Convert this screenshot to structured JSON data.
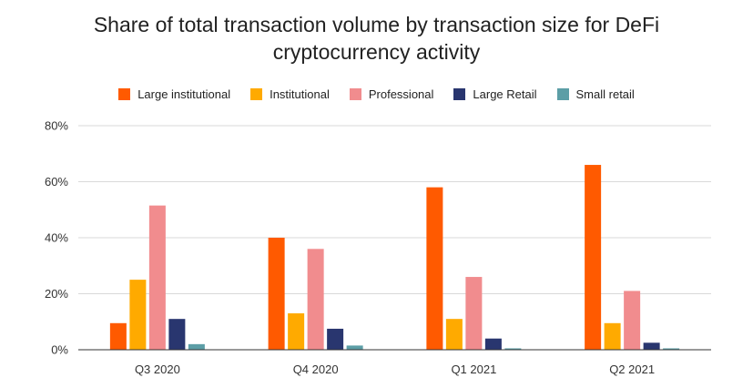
{
  "chart_data": {
    "type": "bar",
    "title": "Share of total transaction volume by transaction size for DeFi cryptocurrency activity",
    "xlabel": "",
    "ylabel": "",
    "categories": [
      "Q3 2020",
      "Q4 2020",
      "Q1 2021",
      "Q2 2021"
    ],
    "series": [
      {
        "name": "Large institutional",
        "color": "#ff5a00",
        "values": [
          9.5,
          40,
          58,
          66
        ]
      },
      {
        "name": "Institutional",
        "color": "#ffaa00",
        "values": [
          25,
          13,
          11,
          9.5
        ]
      },
      {
        "name": "Professional",
        "color": "#f18c8e",
        "values": [
          51.5,
          36,
          26,
          21
        ]
      },
      {
        "name": "Large Retail",
        "color": "#29366f",
        "values": [
          11,
          7.5,
          4,
          2.5
        ]
      },
      {
        "name": "Small retail",
        "color": "#5c9ea6",
        "values": [
          2,
          1.5,
          0.5,
          0.5
        ]
      }
    ],
    "ylim": [
      0,
      80
    ],
    "yticks": [
      0,
      20,
      40,
      60,
      80
    ],
    "ytick_labels": [
      "0%",
      "20%",
      "40%",
      "60%",
      "80%"
    ],
    "grid": true,
    "legend_position": "top"
  }
}
